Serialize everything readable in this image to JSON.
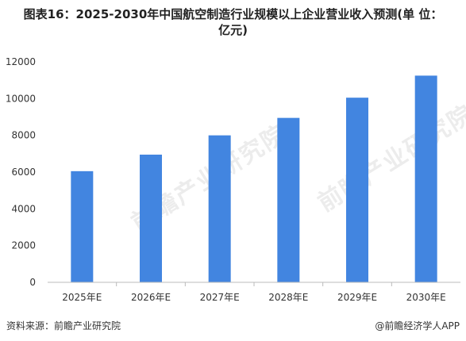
{
  "title_line1": "图表16：2025-2030年中国航空制造行业规模以上企业营业收入预测(单 位：",
  "title_line2": "亿元)",
  "watermark": "前瞻产业研究院",
  "footer": {
    "source": "资料来源：前瞻产业研究院",
    "brand": "@前瞻经济学人APP"
  },
  "colors": {
    "bar": "#4285E0",
    "axis": "#BBBBBB",
    "text": "#333333"
  },
  "chart_data": {
    "type": "bar",
    "title": "图表16：2025-2030年中国航空制造行业规模以上企业营业收入预测(单 位：亿元)",
    "categories": [
      "2025年E",
      "2026年E",
      "2027年E",
      "2028年E",
      "2029年E",
      "2030年E"
    ],
    "values": [
      6050,
      6950,
      8000,
      8950,
      10050,
      11250
    ],
    "ylim": [
      0,
      12000
    ],
    "yticks": [
      0,
      2000,
      4000,
      6000,
      8000,
      10000,
      12000
    ],
    "grid": false,
    "legend": "none"
  }
}
